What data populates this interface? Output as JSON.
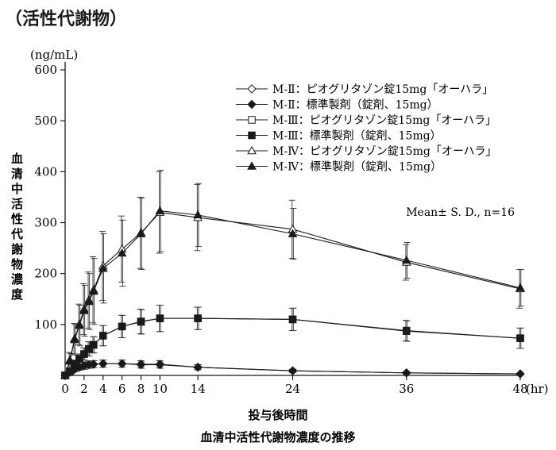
{
  "heading": "（活性代謝物）",
  "chart_data": {
    "type": "line",
    "title": "血清中活性代謝物濃度の推移",
    "xlabel": "投与後時間",
    "ylabel": "血清中活性代謝物濃度",
    "yunit": "(ng/mL)",
    "xunit": "(hr)",
    "annotation": "Mean± S. D., n=16",
    "xlim": [
      0,
      48
    ],
    "ylim": [
      0,
      600
    ],
    "xticks": [
      0,
      2,
      4,
      6,
      8,
      10,
      14,
      24,
      36,
      48
    ],
    "xtick_labels": [
      "0",
      "2",
      "4",
      "6",
      "8",
      "10",
      "14",
      "24",
      "36",
      "48"
    ],
    "yticks": [
      100,
      200,
      300,
      400,
      500,
      600
    ],
    "ytick_labels": [
      "100",
      "200",
      "300",
      "400",
      "500",
      "600"
    ],
    "legend_position": "top-right",
    "x": [
      0,
      0.5,
      1,
      1.5,
      2,
      2.5,
      3,
      4,
      6,
      8,
      10,
      14,
      24,
      36,
      48
    ],
    "series": [
      {
        "name": "M-Ⅱ：ピオグリタゾン錠15mg「オーハラ」",
        "marker": "diamond-open",
        "values": [
          0,
          6,
          12,
          16,
          19,
          21,
          22,
          23,
          23,
          22,
          22,
          16,
          9,
          5,
          3
        ],
        "sd": [
          0,
          3,
          5,
          6,
          7,
          7,
          7,
          7,
          7,
          7,
          7,
          5,
          3,
          2,
          1
        ]
      },
      {
        "name": "M-Ⅱ：標準製剤（錠剤、15mg）",
        "marker": "diamond-filled",
        "values": [
          0,
          6,
          12,
          16,
          19,
          21,
          22,
          23,
          23,
          21,
          21,
          16,
          9,
          5,
          3
        ],
        "sd": [
          0,
          3,
          5,
          6,
          7,
          7,
          7,
          7,
          7,
          7,
          7,
          5,
          3,
          2,
          1
        ]
      },
      {
        "name": "M-Ⅲ：ピオグリタゾン錠15mg「オーハラ」",
        "marker": "square-open",
        "values": [
          0,
          8,
          22,
          32,
          42,
          52,
          60,
          78,
          96,
          106,
          112,
          112,
          110,
          88,
          73
        ],
        "sd": [
          0,
          4,
          8,
          10,
          12,
          14,
          16,
          20,
          22,
          24,
          26,
          22,
          22,
          20,
          20
        ]
      },
      {
        "name": "M-Ⅲ：標準製剤（錠剤、15mg）",
        "marker": "square-filled",
        "values": [
          0,
          8,
          22,
          32,
          42,
          52,
          60,
          78,
          96,
          105,
          112,
          112,
          110,
          87,
          73
        ],
        "sd": [
          0,
          4,
          8,
          10,
          12,
          14,
          16,
          20,
          22,
          24,
          26,
          22,
          22,
          20,
          20
        ]
      },
      {
        "name": "M-Ⅳ：ピオグリタゾン錠15mg「オーハラ」",
        "marker": "triangle-open",
        "values": [
          0,
          30,
          72,
          100,
          130,
          148,
          168,
          215,
          248,
          280,
          320,
          310,
          287,
          222,
          170
        ],
        "sd": [
          0,
          15,
          30,
          40,
          50,
          55,
          65,
          68,
          65,
          70,
          80,
          65,
          57,
          35,
          38
        ]
      },
      {
        "name": "M-Ⅳ：標準製剤（錠剤、15mg）",
        "marker": "triangle-filled",
        "values": [
          0,
          28,
          70,
          98,
          127,
          145,
          165,
          210,
          240,
          278,
          323,
          315,
          278,
          226,
          172
        ],
        "sd": [
          0,
          15,
          30,
          40,
          50,
          55,
          65,
          68,
          65,
          70,
          80,
          62,
          50,
          35,
          36
        ]
      }
    ]
  }
}
